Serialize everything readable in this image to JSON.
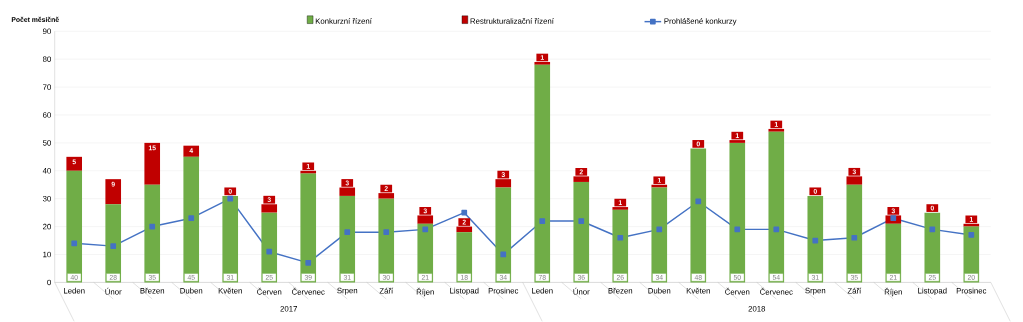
{
  "chart_data": {
    "type": "bar",
    "stacked": true,
    "ylabel": "Počet měsíčně",
    "categories": [
      "Leden",
      "Únor",
      "Březen",
      "Duben",
      "Květen",
      "Červen",
      "Červenec",
      "Srpen",
      "Září",
      "Říjen",
      "Listopad",
      "Prosinec",
      "Leden",
      "Únor",
      "Březen",
      "Duben",
      "Květen",
      "Červen",
      "Červenec",
      "Srpen",
      "Září",
      "Říjen",
      "Listopad",
      "Prosinec"
    ],
    "series": [
      {
        "name": "Konkurzní řízení",
        "color": "#70ad47",
        "values": [
          40,
          28,
          35,
          45,
          31,
          25,
          39,
          31,
          30,
          21,
          18,
          34,
          78,
          36,
          26,
          34,
          48,
          50,
          54,
          31,
          35,
          21,
          25,
          20
        ],
        "value_labels": [
          "40",
          "28",
          "35",
          "45",
          "31",
          "25",
          "39",
          "31",
          "30",
          "21",
          "18",
          "34",
          "78",
          "36",
          "26",
          "34",
          "48",
          "50",
          "54",
          "31",
          "35",
          "21",
          "25",
          "20"
        ]
      },
      {
        "name": "Restrukturalizační řízení",
        "color": "#c00000",
        "values": [
          5,
          9,
          15,
          4,
          0,
          3,
          1,
          3,
          2,
          3,
          2,
          3,
          1,
          2,
          1,
          1,
          0,
          1,
          1,
          0,
          3,
          3,
          0,
          1
        ],
        "value_labels": [
          "5",
          "9",
          "15",
          "4",
          "0",
          "3",
          "1",
          "3",
          "2",
          "3",
          "2",
          "3",
          "1",
          "2",
          "1",
          "1",
          "0",
          "1",
          "1",
          "0",
          "3",
          "3",
          "0",
          "1"
        ]
      },
      {
        "name": "Prohlášené konkurzy",
        "type": "line",
        "color": "#4472c4",
        "marker": "square",
        "line_style": "solid",
        "values": [
          14,
          13,
          20,
          23,
          30,
          11,
          7,
          18,
          18,
          19,
          25,
          10,
          22,
          22,
          16,
          19,
          29,
          19,
          19,
          15,
          16,
          23,
          19,
          17
        ]
      }
    ],
    "annotations": [
      "2017",
      "2018"
    ],
    "ylim": [
      0,
      90
    ],
    "yticks": [
      0,
      10,
      20,
      30,
      40,
      50,
      60,
      70,
      80,
      90
    ],
    "grid": "y",
    "legend": "top"
  }
}
